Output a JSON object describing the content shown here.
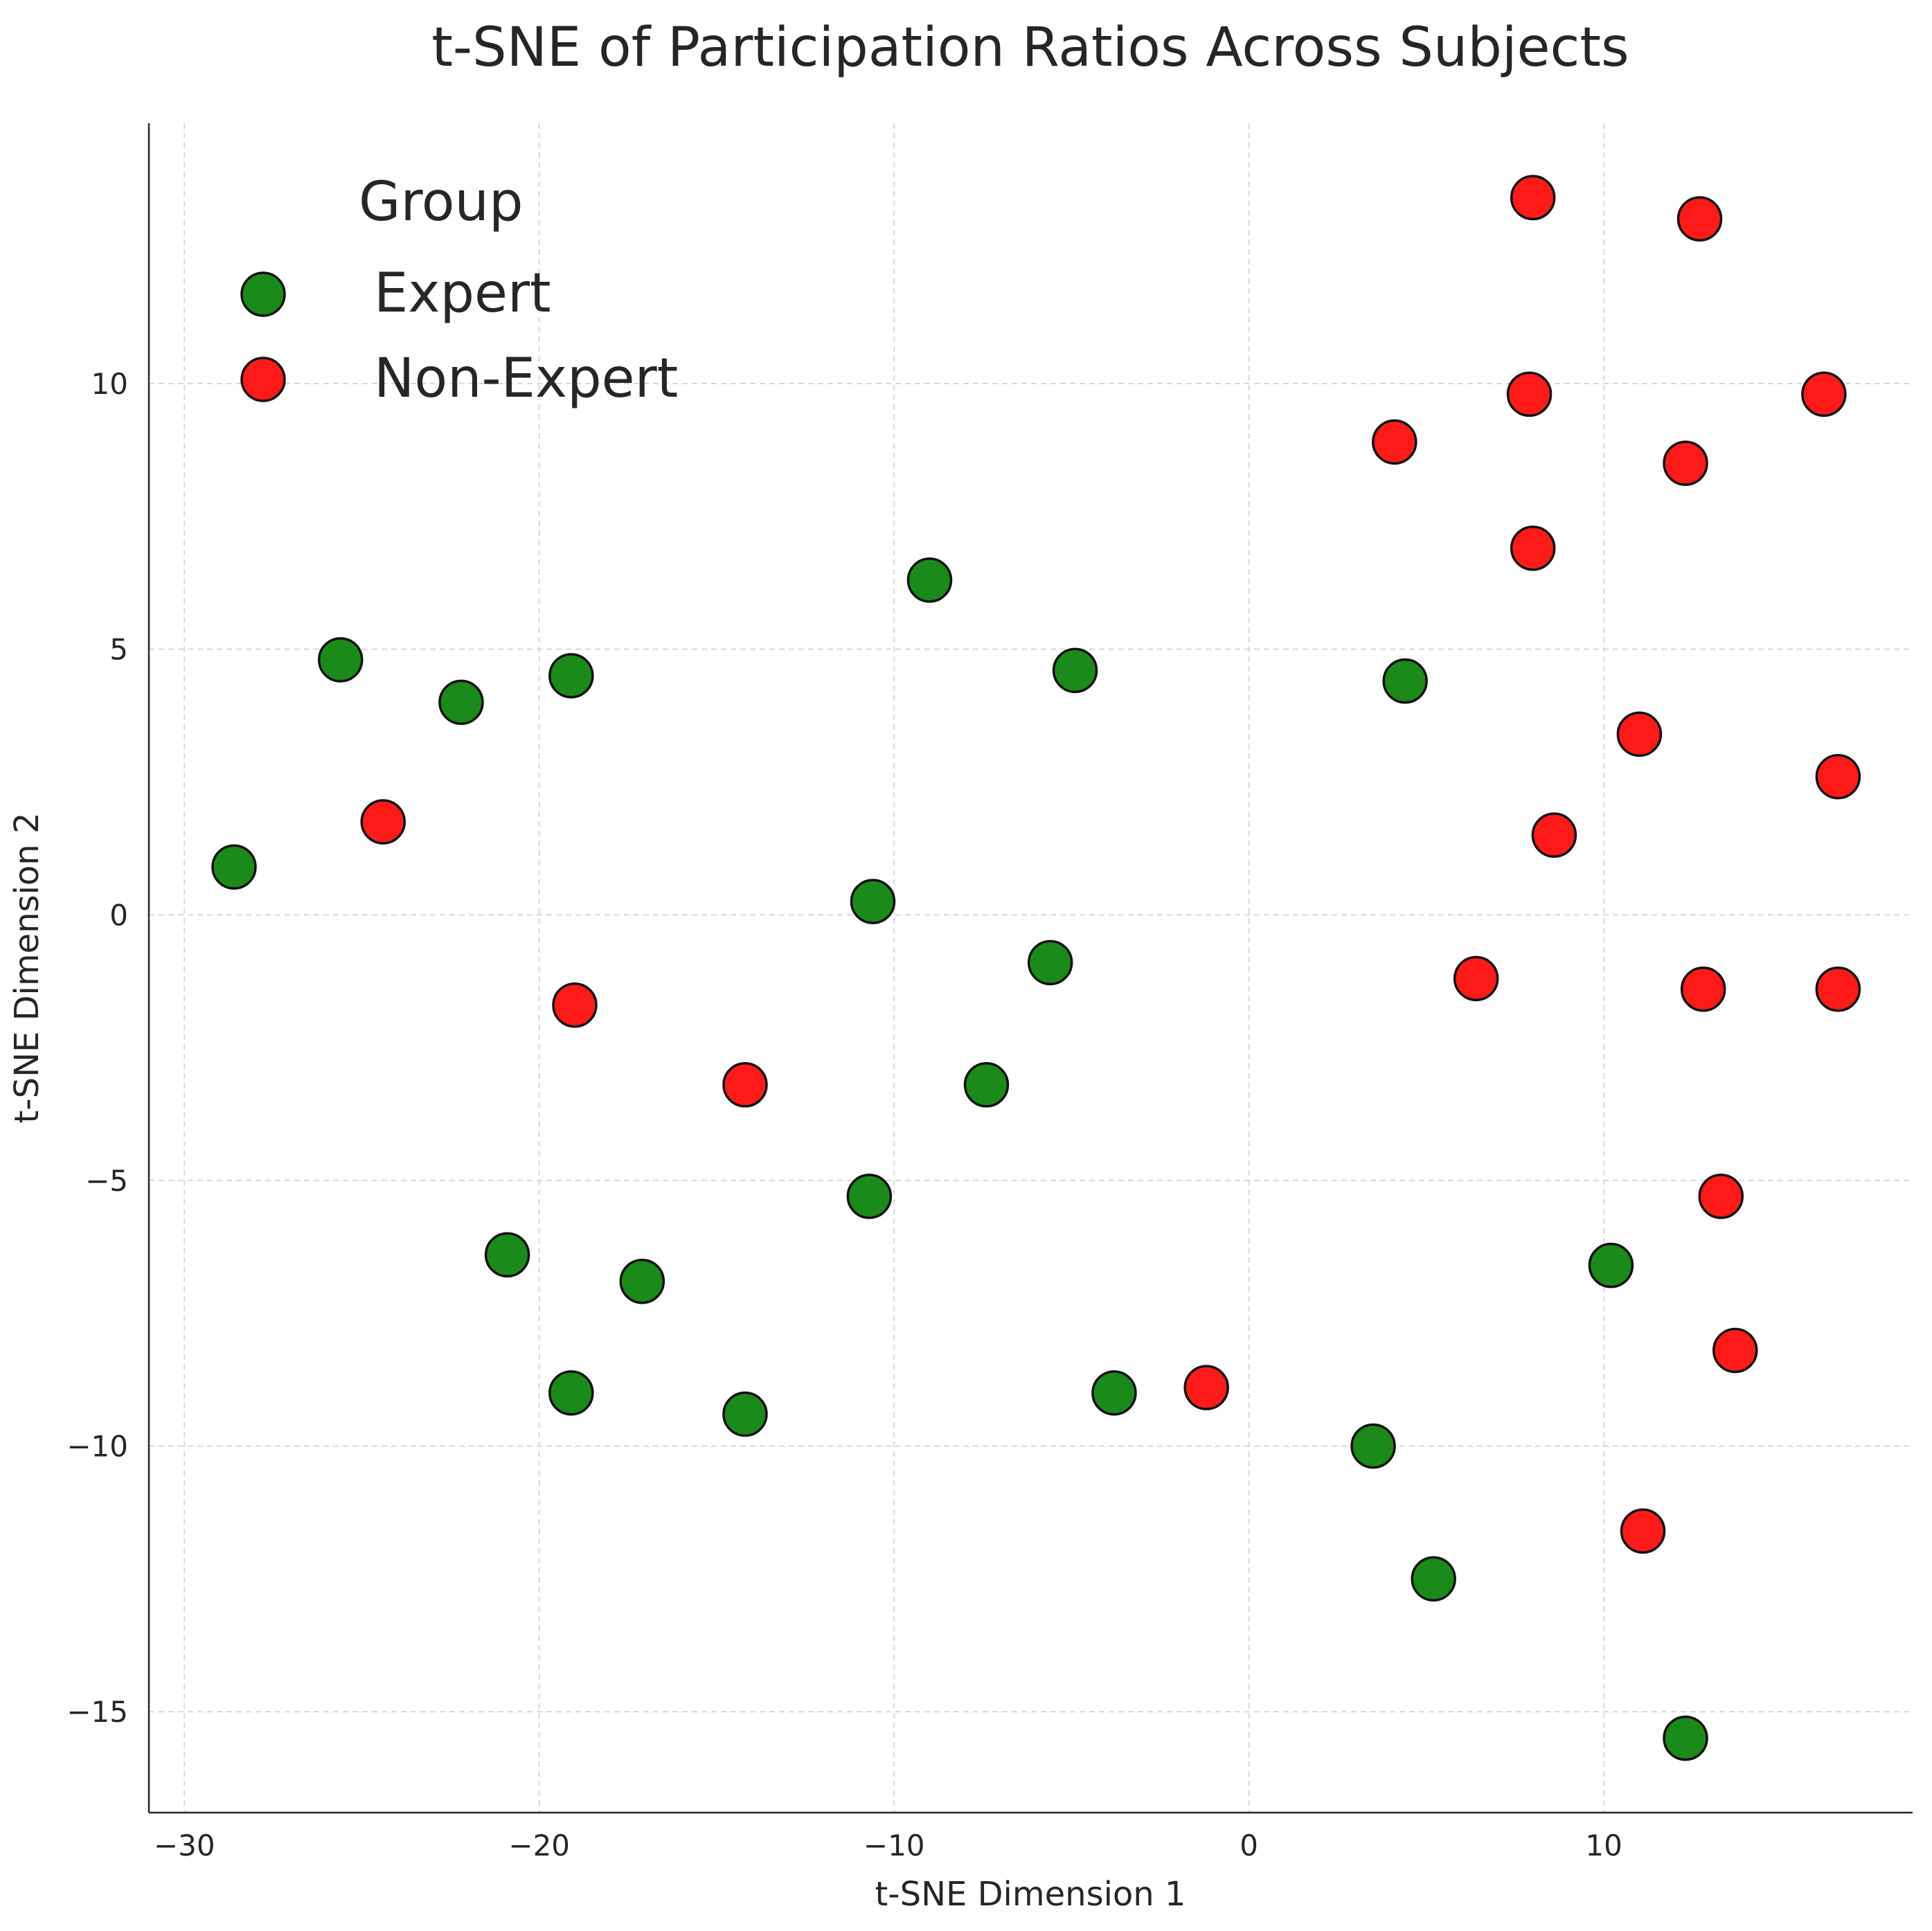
{
  "chart_data": {
    "type": "scatter",
    "title": "t-SNE of Participation Ratios Across Subjects",
    "xlabel": "t-SNE Dimension 1",
    "ylabel": "t-SNE Dimension 2",
    "xlim": [
      -31,
      18.7
    ],
    "ylim": [
      -16.9,
      14.9
    ],
    "xticks": [
      -30,
      -20,
      -10,
      0,
      10
    ],
    "yticks": [
      -15,
      -10,
      -5,
      0,
      5,
      10
    ],
    "xtick_labels": [
      "−30",
      "−20",
      "−10",
      "0",
      "10"
    ],
    "ytick_labels": [
      "−15",
      "−10",
      "−5",
      "0",
      "5",
      "10"
    ],
    "grid": true,
    "legend": {
      "title": "Group",
      "position": "top-left"
    },
    "series": [
      {
        "name": "Expert",
        "color": "#1a8a1a",
        "points": [
          {
            "x": -28.6,
            "y": 0.9
          },
          {
            "x": -25.6,
            "y": 4.8
          },
          {
            "x": -22.2,
            "y": 4.0
          },
          {
            "x": -19.1,
            "y": 4.5
          },
          {
            "x": -9.0,
            "y": 6.3
          },
          {
            "x": -4.9,
            "y": 4.6
          },
          {
            "x": 4.4,
            "y": 4.4
          },
          {
            "x": -10.6,
            "y": 0.25
          },
          {
            "x": -5.6,
            "y": -0.9
          },
          {
            "x": -7.4,
            "y": -3.2
          },
          {
            "x": -10.7,
            "y": -5.3
          },
          {
            "x": -20.9,
            "y": -6.4
          },
          {
            "x": -17.1,
            "y": -6.9
          },
          {
            "x": -19.1,
            "y": -9.0
          },
          {
            "x": -14.2,
            "y": -9.4
          },
          {
            "x": -3.8,
            "y": -9.0
          },
          {
            "x": 3.5,
            "y": -10.0
          },
          {
            "x": 5.2,
            "y": -12.5
          },
          {
            "x": 10.2,
            "y": -6.6
          },
          {
            "x": 12.3,
            "y": -15.5
          }
        ]
      },
      {
        "name": "Non-Expert",
        "color": "#ff1a1a",
        "points": [
          {
            "x": 8.0,
            "y": 13.5
          },
          {
            "x": 12.7,
            "y": 13.1
          },
          {
            "x": 7.9,
            "y": 9.8
          },
          {
            "x": 16.2,
            "y": 9.8
          },
          {
            "x": 4.1,
            "y": 8.9
          },
          {
            "x": 12.3,
            "y": 8.5
          },
          {
            "x": 8.0,
            "y": 6.9
          },
          {
            "x": 11.0,
            "y": 3.4
          },
          {
            "x": 16.6,
            "y": 2.6
          },
          {
            "x": 8.6,
            "y": 1.5
          },
          {
            "x": -24.4,
            "y": 1.75
          },
          {
            "x": -19.0,
            "y": -1.7
          },
          {
            "x": -14.2,
            "y": -3.2
          },
          {
            "x": 6.4,
            "y": -1.2
          },
          {
            "x": 12.8,
            "y": -1.4
          },
          {
            "x": 16.6,
            "y": -1.4
          },
          {
            "x": 13.3,
            "y": -5.3
          },
          {
            "x": 13.7,
            "y": -8.2
          },
          {
            "x": -1.2,
            "y": -8.9
          },
          {
            "x": 11.1,
            "y": -11.6
          }
        ]
      }
    ]
  }
}
